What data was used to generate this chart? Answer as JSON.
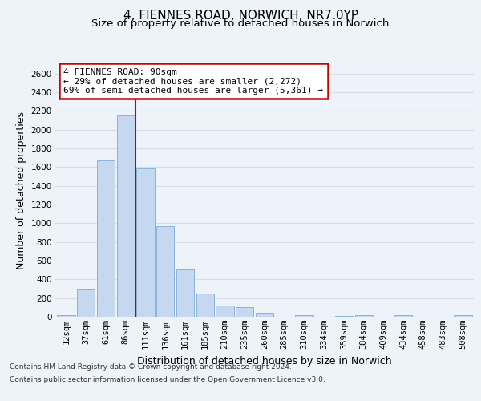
{
  "title_line1": "4, FIENNES ROAD, NORWICH, NR7 0YP",
  "title_line2": "Size of property relative to detached houses in Norwich",
  "xlabel": "Distribution of detached houses by size in Norwich",
  "ylabel": "Number of detached properties",
  "categories": [
    "12sqm",
    "37sqm",
    "61sqm",
    "86sqm",
    "111sqm",
    "136sqm",
    "161sqm",
    "185sqm",
    "210sqm",
    "235sqm",
    "260sqm",
    "285sqm",
    "310sqm",
    "334sqm",
    "359sqm",
    "384sqm",
    "409sqm",
    "434sqm",
    "458sqm",
    "483sqm",
    "508sqm"
  ],
  "values": [
    20,
    300,
    1670,
    2150,
    1590,
    970,
    510,
    245,
    120,
    100,
    45,
    0,
    20,
    0,
    5,
    20,
    0,
    20,
    0,
    0,
    20
  ],
  "bar_color": "#c5d8ef",
  "bar_edge_color": "#7aadd4",
  "red_line_color": "#cc0000",
  "annotation_text": "4 FIENNES ROAD: 90sqm\n← 29% of detached houses are smaller (2,272)\n69% of semi-detached houses are larger (5,361) →",
  "annotation_box_color": "#ffffff",
  "annotation_edge_color": "#cc0000",
  "footer_line1": "Contains HM Land Registry data © Crown copyright and database right 2024.",
  "footer_line2": "Contains public sector information licensed under the Open Government Licence v3.0.",
  "ylim": [
    0,
    2700
  ],
  "yticks": [
    0,
    200,
    400,
    600,
    800,
    1000,
    1200,
    1400,
    1600,
    1800,
    2000,
    2200,
    2400,
    2600
  ],
  "background_color": "#eef2f9",
  "grid_color": "#d8dde8",
  "title_fontsize": 11,
  "subtitle_fontsize": 9.5,
  "tick_fontsize": 7.5,
  "label_fontsize": 9
}
